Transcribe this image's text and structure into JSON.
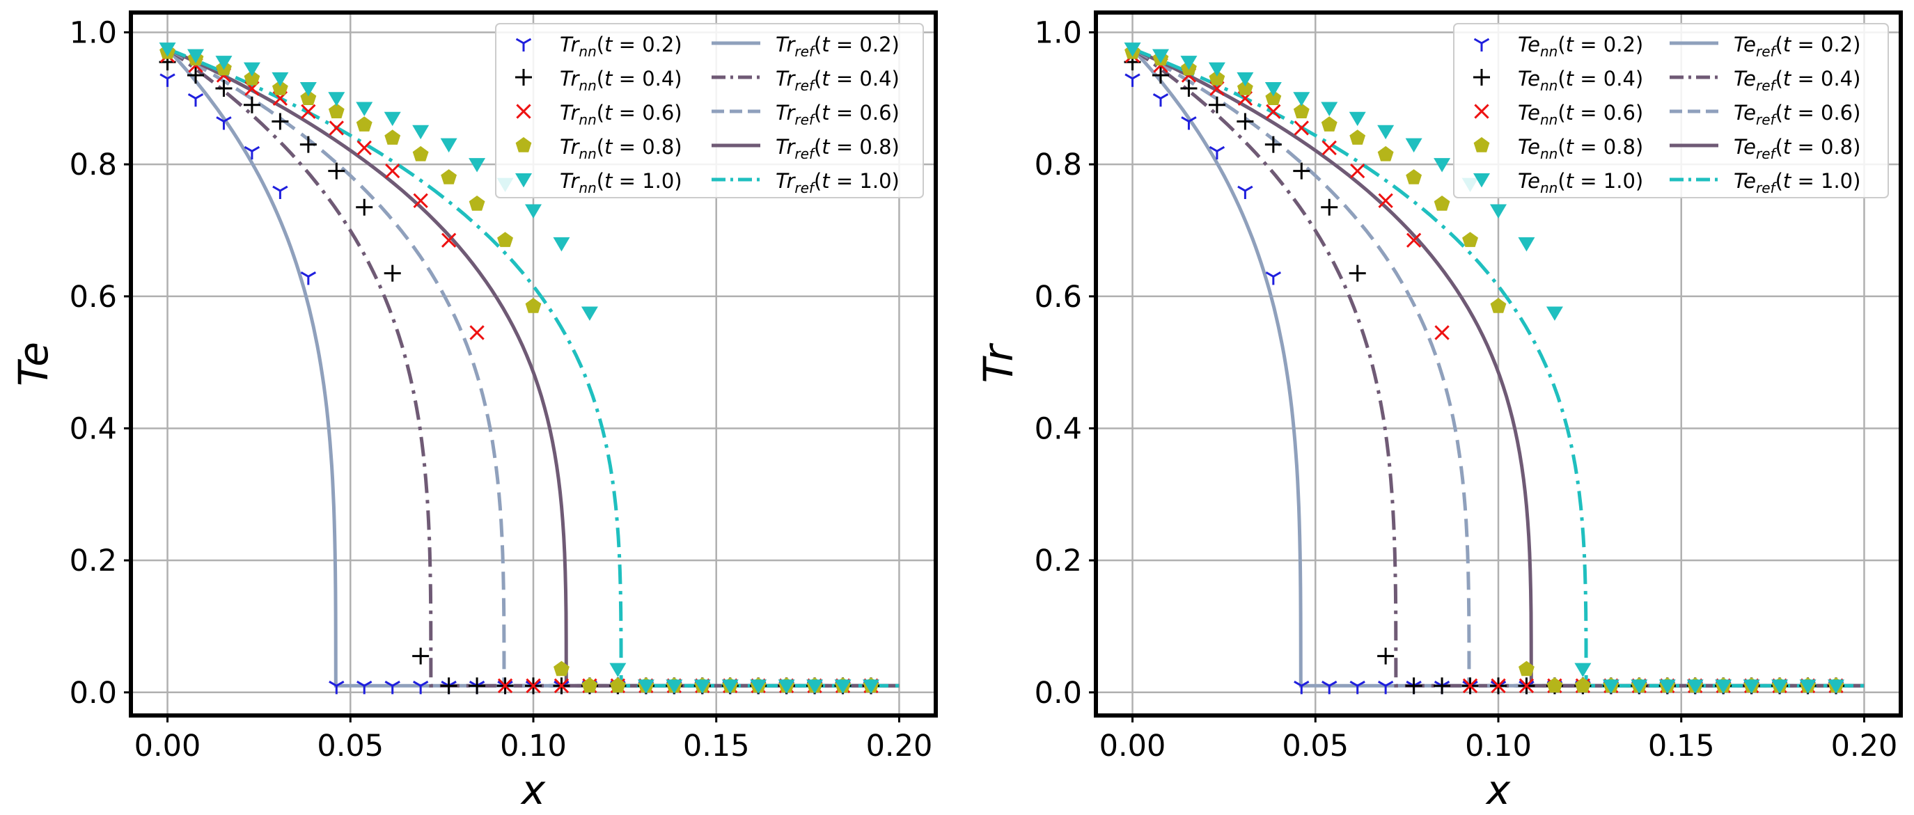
{
  "chart_data": [
    {
      "type": "line",
      "panel": "left",
      "title": "",
      "xlabel": "x",
      "ylabel": "Te",
      "xlim": [
        -0.01,
        0.21
      ],
      "ylim": [
        -0.035,
        1.03
      ],
      "grid": true,
      "legend_position": "top-right",
      "xticks": [
        0.0,
        0.05,
        0.1,
        0.15,
        0.2
      ],
      "xtick_labels": [
        "0.00",
        "0.05",
        "0.10",
        "0.15",
        "0.20"
      ],
      "yticks": [
        0.0,
        0.2,
        0.4,
        0.6,
        0.8,
        1.0
      ],
      "ytick_labels": [
        "0.0",
        "0.2",
        "0.4",
        "0.6",
        "0.8",
        "1.0"
      ],
      "line_prefix": "Tr",
      "marker_prefix": "Tr",
      "lines": [
        {
          "t": "0.2",
          "front": 0.046,
          "color": "#8fa0bc",
          "dash": "solid"
        },
        {
          "t": "0.4",
          "front": 0.072,
          "color": "#6f5a75",
          "dash": "dashdot"
        },
        {
          "t": "0.6",
          "front": 0.092,
          "color": "#8fa0bc",
          "dash": "dashed"
        },
        {
          "t": "0.8",
          "front": 0.109,
          "color": "#6f5a75",
          "dash": "solid"
        },
        {
          "t": "1.0",
          "front": 0.124,
          "color": "#1fbfbf",
          "dash": "dashdot"
        }
      ],
      "line_floor": 0.01,
      "markers": [
        {
          "t": "0.2",
          "marker": "tri_down",
          "color": "#1f1fdd",
          "x": [
            0.0,
            0.0077,
            0.0154,
            0.0231,
            0.0308,
            0.0385,
            0.0462,
            0.0538,
            0.0615,
            0.0692,
            0.0769,
            0.0846,
            0.0923,
            0.1,
            0.1077,
            0.1154,
            0.1231,
            0.1308,
            0.1385,
            0.1462,
            0.1538,
            0.1615,
            0.1692,
            0.1769,
            0.1846,
            0.1923
          ],
          "y": [
            0.93,
            0.9,
            0.865,
            0.82,
            0.76,
            0.63,
            0.01,
            0.01,
            0.01,
            0.01,
            0.01,
            0.01,
            0.01,
            0.01,
            0.01,
            0.01,
            0.01,
            0.01,
            0.01,
            0.01,
            0.01,
            0.01,
            0.01,
            0.01,
            0.01,
            0.01
          ]
        },
        {
          "t": "0.4",
          "marker": "plus",
          "color": "#000000",
          "x": [
            0.0,
            0.0077,
            0.0154,
            0.0231,
            0.0308,
            0.0385,
            0.0462,
            0.0538,
            0.0615,
            0.0692,
            0.0769,
            0.0846,
            0.0923,
            0.1,
            0.1077,
            0.1154,
            0.1231,
            0.1308,
            0.1385,
            0.1462,
            0.1538,
            0.1615,
            0.1692,
            0.1769,
            0.1846,
            0.1923
          ],
          "y": [
            0.955,
            0.935,
            0.915,
            0.89,
            0.865,
            0.83,
            0.79,
            0.735,
            0.635,
            0.055,
            0.01,
            0.01,
            0.01,
            0.01,
            0.01,
            0.01,
            0.01,
            0.01,
            0.01,
            0.01,
            0.01,
            0.01,
            0.01,
            0.01,
            0.01,
            0.01
          ]
        },
        {
          "t": "0.6",
          "marker": "x",
          "color": "#ee1111",
          "x": [
            0.0,
            0.0077,
            0.0154,
            0.0231,
            0.0308,
            0.0385,
            0.0462,
            0.0538,
            0.0615,
            0.0692,
            0.0769,
            0.0846,
            0.0923,
            0.1,
            0.1077,
            0.1154,
            0.1231,
            0.1308,
            0.1385,
            0.1462,
            0.1538,
            0.1615,
            0.1692,
            0.1769,
            0.1846,
            0.1923
          ],
          "y": [
            0.965,
            0.95,
            0.935,
            0.915,
            0.9,
            0.88,
            0.855,
            0.825,
            0.79,
            0.745,
            0.685,
            0.545,
            0.01,
            0.01,
            0.01,
            0.01,
            0.01,
            0.01,
            0.01,
            0.01,
            0.01,
            0.01,
            0.01,
            0.01,
            0.01,
            0.01
          ]
        },
        {
          "t": "0.8",
          "marker": "pentagon",
          "color": "#b5b51a",
          "x": [
            0.0,
            0.0077,
            0.0154,
            0.0231,
            0.0308,
            0.0385,
            0.0462,
            0.0538,
            0.0615,
            0.0692,
            0.0769,
            0.0846,
            0.0923,
            0.1,
            0.1077,
            0.1154,
            0.1231,
            0.1308,
            0.1385,
            0.1462,
            0.1538,
            0.1615,
            0.1692,
            0.1769,
            0.1846,
            0.1923
          ],
          "y": [
            0.97,
            0.96,
            0.945,
            0.93,
            0.915,
            0.9,
            0.88,
            0.86,
            0.84,
            0.815,
            0.78,
            0.74,
            0.685,
            0.585,
            0.035,
            0.01,
            0.01,
            0.01,
            0.01,
            0.01,
            0.01,
            0.01,
            0.01,
            0.01,
            0.01,
            0.01
          ]
        },
        {
          "t": "1.0",
          "marker": "triangle_down",
          "color": "#1fbfbf",
          "x": [
            0.0,
            0.0077,
            0.0154,
            0.0231,
            0.0308,
            0.0385,
            0.0462,
            0.0538,
            0.0615,
            0.0692,
            0.0769,
            0.0846,
            0.0923,
            0.1,
            0.1077,
            0.1154,
            0.1231,
            0.1308,
            0.1385,
            0.1462,
            0.1538,
            0.1615,
            0.1692,
            0.1769,
            0.1846,
            0.1923
          ],
          "y": [
            0.975,
            0.965,
            0.955,
            0.945,
            0.93,
            0.915,
            0.9,
            0.885,
            0.87,
            0.85,
            0.83,
            0.8,
            0.77,
            0.73,
            0.68,
            0.575,
            0.035,
            0.01,
            0.01,
            0.01,
            0.01,
            0.01,
            0.01,
            0.01,
            0.01,
            0.01
          ]
        }
      ]
    },
    {
      "type": "line",
      "panel": "right",
      "title": "",
      "xlabel": "x",
      "ylabel": "Tr",
      "xlim": [
        -0.01,
        0.21
      ],
      "ylim": [
        -0.035,
        1.03
      ],
      "grid": true,
      "legend_position": "top-right",
      "xticks": [
        0.0,
        0.05,
        0.1,
        0.15,
        0.2
      ],
      "xtick_labels": [
        "0.00",
        "0.05",
        "0.10",
        "0.15",
        "0.20"
      ],
      "yticks": [
        0.0,
        0.2,
        0.4,
        0.6,
        0.8,
        1.0
      ],
      "ytick_labels": [
        "0.0",
        "0.2",
        "0.4",
        "0.6",
        "0.8",
        "1.0"
      ],
      "line_prefix": "Te",
      "marker_prefix": "Te",
      "lines": [
        {
          "t": "0.2",
          "front": 0.046,
          "color": "#8fa0bc",
          "dash": "solid"
        },
        {
          "t": "0.4",
          "front": 0.072,
          "color": "#6f5a75",
          "dash": "dashdot"
        },
        {
          "t": "0.6",
          "front": 0.092,
          "color": "#8fa0bc",
          "dash": "dashed"
        },
        {
          "t": "0.8",
          "front": 0.109,
          "color": "#6f5a75",
          "dash": "solid"
        },
        {
          "t": "1.0",
          "front": 0.124,
          "color": "#1fbfbf",
          "dash": "dashdot"
        }
      ],
      "line_floor": 0.01,
      "markers": [
        {
          "t": "0.2",
          "marker": "tri_down",
          "color": "#1f1fdd",
          "x": [
            0.0,
            0.0077,
            0.0154,
            0.0231,
            0.0308,
            0.0385,
            0.0462,
            0.0538,
            0.0615,
            0.0692,
            0.0769,
            0.0846,
            0.0923,
            0.1,
            0.1077,
            0.1154,
            0.1231,
            0.1308,
            0.1385,
            0.1462,
            0.1538,
            0.1615,
            0.1692,
            0.1769,
            0.1846,
            0.1923
          ],
          "y": [
            0.93,
            0.9,
            0.865,
            0.82,
            0.76,
            0.63,
            0.01,
            0.01,
            0.01,
            0.01,
            0.01,
            0.01,
            0.01,
            0.01,
            0.01,
            0.01,
            0.01,
            0.01,
            0.01,
            0.01,
            0.01,
            0.01,
            0.01,
            0.01,
            0.01,
            0.01
          ]
        },
        {
          "t": "0.4",
          "marker": "plus",
          "color": "#000000",
          "x": [
            0.0,
            0.0077,
            0.0154,
            0.0231,
            0.0308,
            0.0385,
            0.0462,
            0.0538,
            0.0615,
            0.0692,
            0.0769,
            0.0846,
            0.0923,
            0.1,
            0.1077,
            0.1154,
            0.1231,
            0.1308,
            0.1385,
            0.1462,
            0.1538,
            0.1615,
            0.1692,
            0.1769,
            0.1846,
            0.1923
          ],
          "y": [
            0.955,
            0.935,
            0.915,
            0.89,
            0.865,
            0.83,
            0.79,
            0.735,
            0.635,
            0.055,
            0.01,
            0.01,
            0.01,
            0.01,
            0.01,
            0.01,
            0.01,
            0.01,
            0.01,
            0.01,
            0.01,
            0.01,
            0.01,
            0.01,
            0.01,
            0.01
          ]
        },
        {
          "t": "0.6",
          "marker": "x",
          "color": "#ee1111",
          "x": [
            0.0,
            0.0077,
            0.0154,
            0.0231,
            0.0308,
            0.0385,
            0.0462,
            0.0538,
            0.0615,
            0.0692,
            0.0769,
            0.0846,
            0.0923,
            0.1,
            0.1077,
            0.1154,
            0.1231,
            0.1308,
            0.1385,
            0.1462,
            0.1538,
            0.1615,
            0.1692,
            0.1769,
            0.1846,
            0.1923
          ],
          "y": [
            0.965,
            0.95,
            0.935,
            0.915,
            0.9,
            0.88,
            0.855,
            0.825,
            0.79,
            0.745,
            0.685,
            0.545,
            0.01,
            0.01,
            0.01,
            0.01,
            0.01,
            0.01,
            0.01,
            0.01,
            0.01,
            0.01,
            0.01,
            0.01,
            0.01,
            0.01
          ]
        },
        {
          "t": "0.8",
          "marker": "pentagon",
          "color": "#b5b51a",
          "x": [
            0.0,
            0.0077,
            0.0154,
            0.0231,
            0.0308,
            0.0385,
            0.0462,
            0.0538,
            0.0615,
            0.0692,
            0.0769,
            0.0846,
            0.0923,
            0.1,
            0.1077,
            0.1154,
            0.1231,
            0.1308,
            0.1385,
            0.1462,
            0.1538,
            0.1615,
            0.1692,
            0.1769,
            0.1846,
            0.1923
          ],
          "y": [
            0.97,
            0.96,
            0.945,
            0.93,
            0.915,
            0.9,
            0.88,
            0.86,
            0.84,
            0.815,
            0.78,
            0.74,
            0.685,
            0.585,
            0.035,
            0.01,
            0.01,
            0.01,
            0.01,
            0.01,
            0.01,
            0.01,
            0.01,
            0.01,
            0.01,
            0.01
          ]
        },
        {
          "t": "1.0",
          "marker": "triangle_down",
          "color": "#1fbfbf",
          "x": [
            0.0,
            0.0077,
            0.0154,
            0.0231,
            0.0308,
            0.0385,
            0.0462,
            0.0538,
            0.0615,
            0.0692,
            0.0769,
            0.0846,
            0.0923,
            0.1,
            0.1077,
            0.1154,
            0.1231,
            0.1308,
            0.1385,
            0.1462,
            0.1538,
            0.1615,
            0.1692,
            0.1769,
            0.1846,
            0.1923
          ],
          "y": [
            0.975,
            0.965,
            0.955,
            0.945,
            0.93,
            0.915,
            0.9,
            0.885,
            0.87,
            0.85,
            0.83,
            0.8,
            0.77,
            0.73,
            0.68,
            0.575,
            0.035,
            0.01,
            0.01,
            0.01,
            0.01,
            0.01,
            0.01,
            0.01,
            0.01,
            0.01
          ]
        }
      ]
    }
  ],
  "legend": {
    "marker_sub": "nn",
    "line_sub": "ref",
    "t_symbol": "t",
    "equals": " = "
  }
}
